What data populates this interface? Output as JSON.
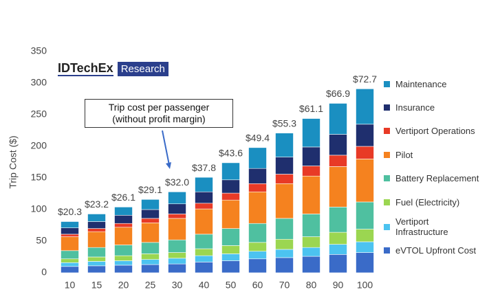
{
  "chart_data": {
    "type": "stacked_bar",
    "ylabel": "Trip Cost ($)",
    "logo": {
      "name": "IDTechEx",
      "tag": "Research"
    },
    "annotation": [
      "Trip cost per passenger",
      "(without profit margin)"
    ],
    "categories": [
      "10",
      "15",
      "20",
      "25",
      "30",
      "40",
      "50",
      "60",
      "70",
      "80",
      "90",
      "100"
    ],
    "bar_labels": [
      "$20.3",
      "$23.2",
      "$26.1",
      "$29.1",
      "$32.0",
      "$37.8",
      "$43.6",
      "$49.4",
      "$55.3",
      "$61.1",
      "$66.9",
      "$72.7"
    ],
    "ylim": [
      0,
      350
    ],
    "yticks": [
      0,
      50,
      100,
      150,
      200,
      250,
      300,
      350
    ],
    "series": [
      {
        "name": "eVTOL Upfront Cost",
        "color": "#3a6bc8",
        "values": [
          10,
          11,
          12,
          13,
          14,
          17,
          19,
          22,
          24,
          26,
          29,
          32
        ]
      },
      {
        "name": "Vertiport Infrastructure",
        "color": "#4cc3f0",
        "values": [
          6,
          7,
          7,
          8,
          9,
          10,
          11,
          12,
          13,
          14,
          16,
          17
        ]
      },
      {
        "name": "Fuel (Electricity)",
        "color": "#9bd651",
        "values": [
          6,
          7,
          8,
          9,
          9,
          11,
          13,
          14,
          16,
          17,
          19,
          20
        ]
      },
      {
        "name": "Battery Replacement",
        "color": "#4fc0a0",
        "values": [
          13,
          15,
          17,
          18,
          20,
          23,
          27,
          30,
          33,
          36,
          40,
          43
        ]
      },
      {
        "name": "Pilot",
        "color": "#f5821f",
        "values": [
          22,
          25,
          28,
          31,
          34,
          40,
          45,
          50,
          55,
          60,
          64,
          68
        ]
      },
      {
        "name": "Vertiport Operations",
        "color": "#e83a26",
        "values": [
          4,
          5,
          6,
          7,
          7,
          9,
          11,
          13,
          15,
          16,
          18,
          20
        ]
      },
      {
        "name": "Insurance",
        "color": "#1f2f6e",
        "values": [
          10,
          11,
          13,
          14,
          16,
          18,
          21,
          24,
          27,
          30,
          33,
          35
        ]
      },
      {
        "name": "Maintenance",
        "color": "#1a8fc1",
        "values": [
          10,
          12,
          13,
          16,
          19,
          23,
          27,
          33,
          38,
          45,
          49,
          56
        ]
      }
    ]
  }
}
